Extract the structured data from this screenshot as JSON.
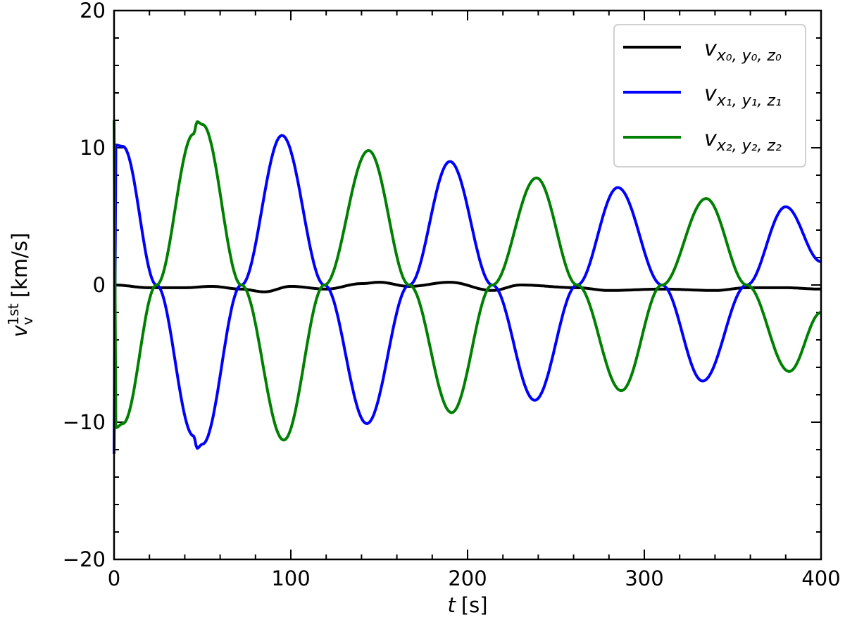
{
  "chart_data": {
    "type": "line",
    "title": "",
    "xlabel": "t [s]",
    "ylabel": "v_v^1st [km/s]",
    "xlim": [
      0,
      400
    ],
    "ylim": [
      -20,
      20
    ],
    "xticks": [
      0,
      100,
      200,
      300,
      400
    ],
    "xtick_labels": [
      "0",
      "100",
      "200",
      "300",
      "400"
    ],
    "yticks": [
      -20,
      -10,
      0,
      10,
      20
    ],
    "ytick_labels": [
      "−20",
      "−10",
      "0",
      "10",
      "20"
    ],
    "grid": false,
    "legend_position": "upper right",
    "series": [
      {
        "name": "v_{x0,y0,z0}",
        "color": "#000000",
        "x": [
          0,
          20,
          40,
          55,
          72,
          85,
          100,
          120,
          140,
          150,
          167,
          190,
          214,
          230,
          262,
          280,
          310,
          340,
          358,
          380,
          400
        ],
        "values": [
          0.0,
          -0.2,
          -0.2,
          -0.1,
          -0.3,
          -0.5,
          -0.1,
          -0.3,
          0.1,
          0.2,
          -0.1,
          0.2,
          -0.4,
          0.0,
          -0.2,
          -0.4,
          -0.3,
          -0.4,
          -0.2,
          -0.2,
          -0.3
        ]
      },
      {
        "name": "v_{x1,y1,z1}",
        "color": "#0000ff",
        "x": [
          0,
          1,
          5,
          24,
          45,
          47,
          50,
          72,
          95,
          119,
          143,
          167,
          190,
          214,
          238,
          262,
          285,
          310,
          333,
          358,
          380,
          400
        ],
        "values": [
          -12.3,
          10.2,
          10.1,
          0.0,
          -11.0,
          -11.9,
          -11.6,
          0.0,
          10.9,
          0.0,
          -10.1,
          0.0,
          9.0,
          0.0,
          -8.4,
          0.0,
          7.1,
          0.0,
          -7.0,
          0.0,
          5.7,
          1.7
        ]
      },
      {
        "name": "v_{x2,y2,z2}",
        "color": "#008000",
        "x": [
          0,
          1,
          5,
          24,
          45,
          47,
          50,
          72,
          96,
          119,
          144,
          167,
          191,
          214,
          239,
          262,
          287,
          310,
          335,
          358,
          382,
          400
        ],
        "values": [
          12.0,
          -10.4,
          -10.1,
          0.0,
          11.0,
          11.9,
          11.7,
          0.0,
          -11.3,
          0.0,
          9.8,
          0.0,
          -9.3,
          0.0,
          7.8,
          0.0,
          -7.7,
          0.0,
          6.3,
          0.0,
          -6.3,
          -2.0
        ]
      }
    ]
  },
  "legend": {
    "entries": [
      {
        "base": "v",
        "sub": "x₀, y₀, z₀",
        "color": "#000000"
      },
      {
        "base": "v",
        "sub": "x₁, y₁, z₁",
        "color": "#0000ff"
      },
      {
        "base": "v",
        "sub": "x₂, y₂, z₂",
        "color": "#008000"
      }
    ]
  },
  "axes": {
    "xlabel_var": "t",
    "xlabel_unit": "[s]",
    "ylabel_var": "v",
    "ylabel_sub": "v",
    "ylabel_sup": "1st",
    "ylabel_unit": "[km/s]"
  }
}
